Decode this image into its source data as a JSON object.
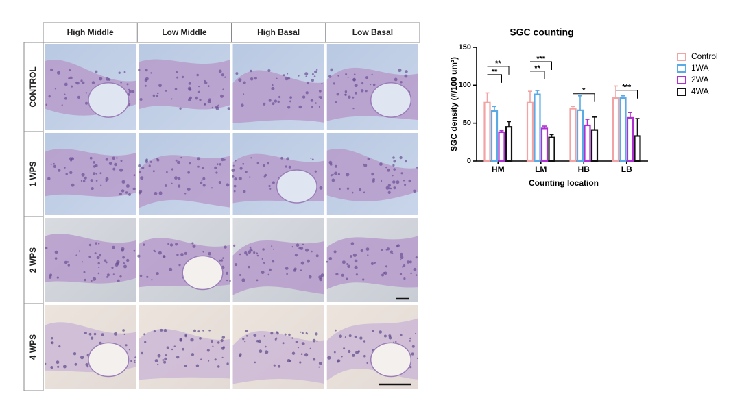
{
  "figure": {
    "columns": [
      "High Middle",
      "Low Middle",
      "High Basal",
      "Low Basal"
    ],
    "rows": [
      "CONTROL",
      "1 WPS",
      "2 WPS",
      "4 WPS"
    ]
  },
  "chart_data": {
    "type": "bar",
    "title": "SGC counting",
    "y_label": "SGC density (#/100 um²)",
    "x_label": "Counting location",
    "categories": [
      "HM",
      "LM",
      "HB",
      "LB"
    ],
    "series": [
      {
        "name": "Control",
        "color": "#f2a3a3",
        "values": [
          77,
          77,
          69,
          83
        ],
        "errors": [
          13,
          15,
          3,
          16
        ]
      },
      {
        "name": "1WA",
        "color": "#5aaae6",
        "values": [
          66,
          88,
          67,
          83
        ],
        "errors": [
          6,
          5,
          19,
          3
        ]
      },
      {
        "name": "2WA",
        "color": "#b02fd0",
        "values": [
          38,
          43,
          47,
          57
        ],
        "errors": [
          2,
          3,
          8,
          7
        ]
      },
      {
        "name": "4WA",
        "color": "#111111",
        "values": [
          45,
          31,
          41,
          33
        ],
        "errors": [
          7,
          4,
          17,
          23
        ]
      }
    ],
    "ylim": [
      0,
      150
    ],
    "yticks": [
      0,
      50,
      100,
      150
    ],
    "annotations": [
      "**",
      "**",
      "**",
      "***",
      "*",
      "***"
    ]
  }
}
